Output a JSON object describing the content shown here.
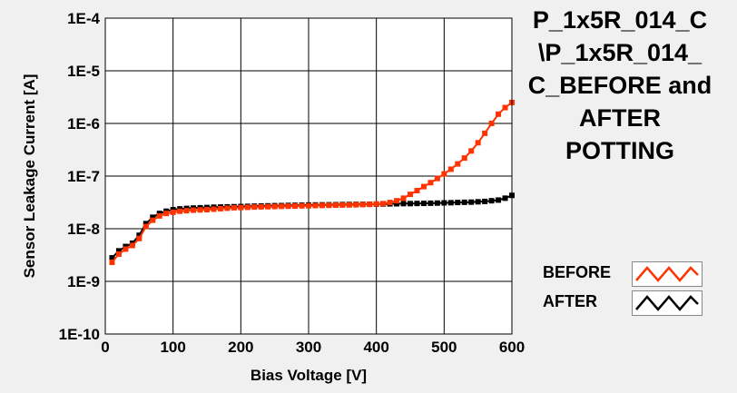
{
  "chart_data": {
    "type": "line",
    "title": [
      "P_1x5R_014_C",
      "\\P_1x5R_014_",
      "C_BEFORE and",
      "AFTER",
      "POTTING"
    ],
    "xlabel": "Bias Voltage [V]",
    "ylabel": "Sensor Leakage Current [A]",
    "xlim": [
      0,
      600
    ],
    "ylim": [
      1e-10,
      0.0001
    ],
    "y_scale": "log",
    "grid": true,
    "legend_position": "bottom-right",
    "x_ticks": [
      0,
      100,
      200,
      300,
      400,
      500,
      600
    ],
    "x_tick_labels": [
      "0",
      "100",
      "200",
      "300",
      "400",
      "500",
      "600"
    ],
    "y_ticks": [
      1e-10,
      1e-09,
      1e-08,
      1e-07,
      1e-06,
      1e-05,
      0.0001
    ],
    "y_tick_labels": [
      "1E-10",
      "1E-9",
      "1E-8",
      "1E-7",
      "1E-6",
      "1E-5",
      "1E-4"
    ],
    "x": [
      10,
      20,
      30,
      40,
      50,
      60,
      70,
      80,
      90,
      100,
      110,
      120,
      130,
      140,
      150,
      160,
      170,
      180,
      190,
      200,
      210,
      220,
      230,
      240,
      250,
      260,
      270,
      280,
      290,
      300,
      310,
      320,
      330,
      340,
      350,
      360,
      370,
      380,
      390,
      400,
      410,
      420,
      430,
      440,
      450,
      460,
      470,
      480,
      490,
      500,
      510,
      520,
      530,
      540,
      550,
      560,
      570,
      580,
      590,
      600
    ],
    "series": [
      {
        "name": "BEFORE",
        "color": "#ff3300",
        "values": [
          2.3e-09,
          3.3e-09,
          4.1e-09,
          4.8e-09,
          6.5e-09,
          1.1e-08,
          1.45e-08,
          1.75e-08,
          1.95e-08,
          2.05e-08,
          2.15e-08,
          2.2e-08,
          2.25e-08,
          2.28e-08,
          2.3e-08,
          2.35e-08,
          2.4e-08,
          2.45e-08,
          2.5e-08,
          2.52e-08,
          2.55e-08,
          2.58e-08,
          2.6e-08,
          2.62e-08,
          2.64e-08,
          2.66e-08,
          2.68e-08,
          2.7e-08,
          2.72e-08,
          2.73e-08,
          2.75e-08,
          2.77e-08,
          2.78e-08,
          2.8e-08,
          2.82e-08,
          2.83e-08,
          2.85e-08,
          2.88e-08,
          2.9e-08,
          2.95e-08,
          3e-08,
          3.15e-08,
          3.4e-08,
          3.8e-08,
          4.5e-08,
          5.3e-08,
          6.3e-08,
          7.5e-08,
          9e-08,
          1.1e-07,
          1.35e-07,
          1.7e-07,
          2.2e-07,
          3e-07,
          4.3e-07,
          6.5e-07,
          1e-06,
          1.5e-06,
          2e-06,
          2.5e-06
        ]
      },
      {
        "name": "AFTER",
        "color": "#000000",
        "values": [
          2.8e-09,
          3.8e-09,
          4.6e-09,
          5.3e-09,
          7.5e-09,
          1.25e-08,
          1.65e-08,
          1.95e-08,
          2.15e-08,
          2.3e-08,
          2.38e-08,
          2.43e-08,
          2.47e-08,
          2.5e-08,
          2.53e-08,
          2.56e-08,
          2.58e-08,
          2.6e-08,
          2.62e-08,
          2.64e-08,
          2.66e-08,
          2.68e-08,
          2.7e-08,
          2.72e-08,
          2.74e-08,
          2.75e-08,
          2.77e-08,
          2.78e-08,
          2.8e-08,
          2.82e-08,
          2.83e-08,
          2.84e-08,
          2.85e-08,
          2.86e-08,
          2.88e-08,
          2.89e-08,
          2.9e-08,
          2.91e-08,
          2.92e-08,
          2.93e-08,
          2.95e-08,
          2.97e-08,
          2.98e-08,
          3e-08,
          3e-08,
          3.02e-08,
          3.03e-08,
          3.05e-08,
          3.07e-08,
          3.1e-08,
          3.12e-08,
          3.15e-08,
          3.18e-08,
          3.2e-08,
          3.25e-08,
          3.3e-08,
          3.4e-08,
          3.5e-08,
          3.8e-08,
          4.3e-08
        ]
      }
    ]
  },
  "legend": {
    "items": [
      {
        "label": "BEFORE",
        "color": "#ff3300"
      },
      {
        "label": "AFTER",
        "color": "#000000"
      }
    ]
  },
  "colors": {
    "background": "#f0f0f0",
    "plot_background": "#ffffff",
    "grid": "#000000"
  }
}
